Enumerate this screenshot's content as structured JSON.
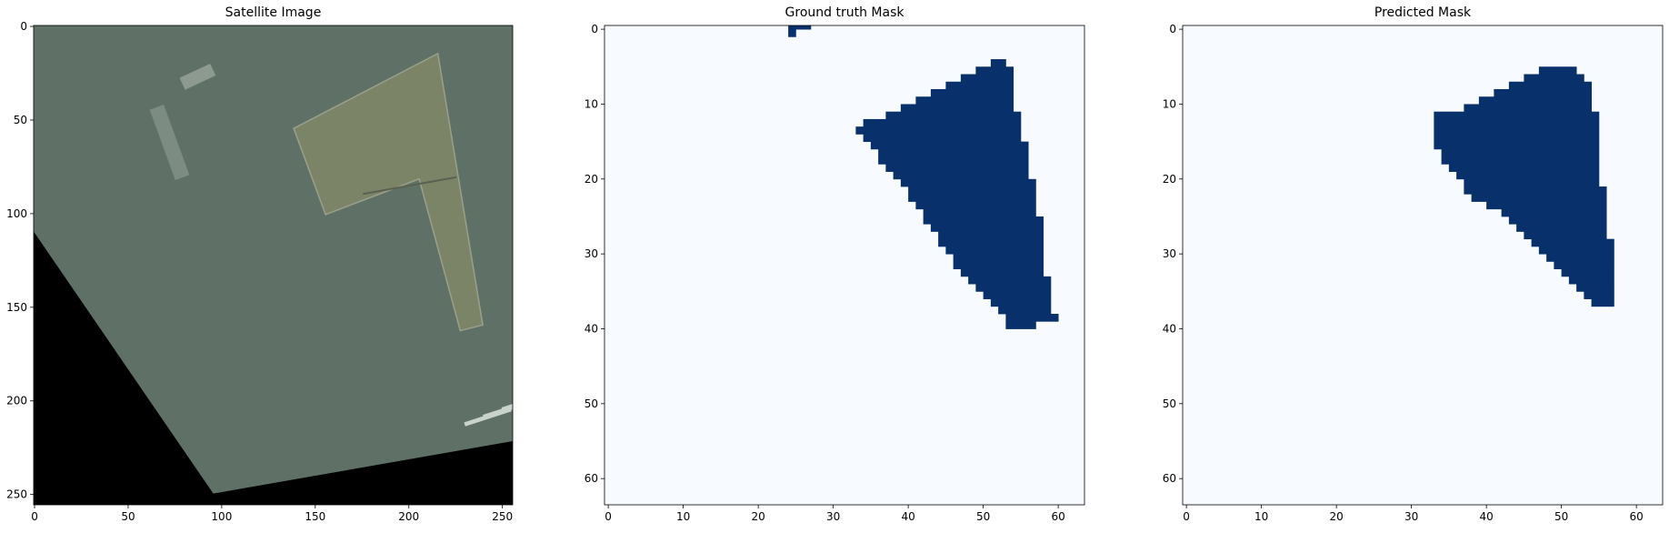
{
  "chart_data": [
    {
      "type": "heatmap",
      "title": "Satellite Image",
      "width": 256,
      "height": 256,
      "xticks": [
        0,
        50,
        100,
        150,
        200,
        250
      ],
      "yticks": [
        0,
        50,
        100,
        150,
        200,
        250
      ],
      "colors": {
        "ground": "#5f7166",
        "roof": "#7c8468",
        "roof_dark": "#6a7058",
        "nodata": "#000000"
      },
      "nodata_boundary": [
        [
          0,
          110
        ],
        [
          96,
          250
        ],
        [
          256,
          222
        ]
      ],
      "roof_polygon": [
        [
          139,
          55
        ],
        [
          216,
          15
        ],
        [
          240,
          160
        ],
        [
          228,
          163
        ],
        [
          206,
          82
        ],
        [
          156,
          101
        ]
      ],
      "roof_split_line": [
        [
          176,
          90
        ],
        [
          226,
          81
        ]
      ],
      "buildings": [
        [
          230,
          212
        ],
        [
          240,
          208
        ],
        [
          250,
          204
        ]
      ]
    },
    {
      "type": "heatmap",
      "title": "Ground truth Mask",
      "width": 64,
      "height": 64,
      "xticks": [
        0,
        10,
        20,
        30,
        40,
        50,
        60
      ],
      "yticks": [
        0,
        10,
        20,
        30,
        40,
        50,
        60
      ],
      "colors": {
        "background": "#f7fbff",
        "foreground": "#08306b"
      },
      "rows": [
        {
          "y": 0,
          "x0": 25,
          "x1": 27
        },
        {
          "y": 1,
          "x0": 25,
          "x1": 25
        },
        {
          "y": 5,
          "x0": 52,
          "x1": 53
        },
        {
          "y": 6,
          "x0": 50,
          "x1": 54
        },
        {
          "y": 7,
          "x0": 48,
          "x1": 54
        },
        {
          "y": 8,
          "x0": 46,
          "x1": 54
        },
        {
          "y": 9,
          "x0": 44,
          "x1": 54
        },
        {
          "y": 10,
          "x0": 42,
          "x1": 54
        },
        {
          "y": 11,
          "x0": 40,
          "x1": 54
        },
        {
          "y": 12,
          "x0": 38,
          "x1": 55
        },
        {
          "y": 13,
          "x0": 35,
          "x1": 55
        },
        {
          "y": 14,
          "x0": 34,
          "x1": 55
        },
        {
          "y": 15,
          "x0": 35,
          "x1": 55
        },
        {
          "y": 16,
          "x0": 36,
          "x1": 56
        },
        {
          "y": 17,
          "x0": 37,
          "x1": 56
        },
        {
          "y": 18,
          "x0": 37,
          "x1": 56
        },
        {
          "y": 19,
          "x0": 38,
          "x1": 56
        },
        {
          "y": 20,
          "x0": 39,
          "x1": 56
        },
        {
          "y": 21,
          "x0": 40,
          "x1": 57
        },
        {
          "y": 22,
          "x0": 41,
          "x1": 57
        },
        {
          "y": 23,
          "x0": 41,
          "x1": 57
        },
        {
          "y": 24,
          "x0": 42,
          "x1": 57
        },
        {
          "y": 25,
          "x0": 43,
          "x1": 57
        },
        {
          "y": 26,
          "x0": 43,
          "x1": 58
        },
        {
          "y": 27,
          "x0": 44,
          "x1": 58
        },
        {
          "y": 28,
          "x0": 45,
          "x1": 58
        },
        {
          "y": 29,
          "x0": 45,
          "x1": 58
        },
        {
          "y": 30,
          "x0": 46,
          "x1": 58
        },
        {
          "y": 31,
          "x0": 47,
          "x1": 58
        },
        {
          "y": 32,
          "x0": 47,
          "x1": 58
        },
        {
          "y": 33,
          "x0": 48,
          "x1": 58
        },
        {
          "y": 34,
          "x0": 49,
          "x1": 59
        },
        {
          "y": 35,
          "x0": 50,
          "x1": 59
        },
        {
          "y": 36,
          "x0": 51,
          "x1": 59
        },
        {
          "y": 37,
          "x0": 52,
          "x1": 59
        },
        {
          "y": 38,
          "x0": 53,
          "x1": 59
        },
        {
          "y": 39,
          "x0": 54,
          "x1": 60
        },
        {
          "y": 40,
          "x0": 54,
          "x1": 57
        }
      ]
    },
    {
      "type": "heatmap",
      "title": "Predicted Mask",
      "width": 64,
      "height": 64,
      "xticks": [
        0,
        10,
        20,
        30,
        40,
        50,
        60
      ],
      "yticks": [
        0,
        10,
        20,
        30,
        40,
        50,
        60
      ],
      "colors": {
        "background": "#f7fbff",
        "foreground": "#08306b"
      },
      "rows": [
        {
          "y": 6,
          "x0": 48,
          "x1": 52
        },
        {
          "y": 7,
          "x0": 46,
          "x1": 53
        },
        {
          "y": 8,
          "x0": 44,
          "x1": 54
        },
        {
          "y": 9,
          "x0": 42,
          "x1": 54
        },
        {
          "y": 10,
          "x0": 40,
          "x1": 54
        },
        {
          "y": 11,
          "x0": 38,
          "x1": 54
        },
        {
          "y": 12,
          "x0": 34,
          "x1": 55
        },
        {
          "y": 13,
          "x0": 34,
          "x1": 55
        },
        {
          "y": 14,
          "x0": 34,
          "x1": 55
        },
        {
          "y": 15,
          "x0": 34,
          "x1": 55
        },
        {
          "y": 16,
          "x0": 34,
          "x1": 55
        },
        {
          "y": 17,
          "x0": 35,
          "x1": 55
        },
        {
          "y": 18,
          "x0": 35,
          "x1": 55
        },
        {
          "y": 19,
          "x0": 36,
          "x1": 55
        },
        {
          "y": 20,
          "x0": 37,
          "x1": 55
        },
        {
          "y": 21,
          "x0": 38,
          "x1": 55
        },
        {
          "y": 22,
          "x0": 38,
          "x1": 56
        },
        {
          "y": 23,
          "x0": 39,
          "x1": 56
        },
        {
          "y": 24,
          "x0": 41,
          "x1": 56
        },
        {
          "y": 25,
          "x0": 43,
          "x1": 56
        },
        {
          "y": 26,
          "x0": 44,
          "x1": 56
        },
        {
          "y": 27,
          "x0": 45,
          "x1": 56
        },
        {
          "y": 28,
          "x0": 46,
          "x1": 56
        },
        {
          "y": 29,
          "x0": 47,
          "x1": 57
        },
        {
          "y": 30,
          "x0": 48,
          "x1": 57
        },
        {
          "y": 31,
          "x0": 49,
          "x1": 57
        },
        {
          "y": 32,
          "x0": 50,
          "x1": 57
        },
        {
          "y": 33,
          "x0": 51,
          "x1": 57
        },
        {
          "y": 34,
          "x0": 52,
          "x1": 57
        },
        {
          "y": 35,
          "x0": 53,
          "x1": 57
        },
        {
          "y": 36,
          "x0": 54,
          "x1": 57
        },
        {
          "y": 37,
          "x0": 55,
          "x1": 57
        }
      ]
    }
  ]
}
